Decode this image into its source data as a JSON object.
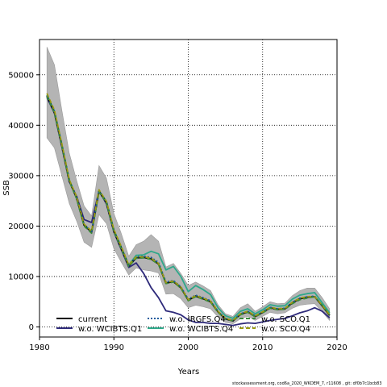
{
  "chart_data": {
    "type": "line",
    "title": "",
    "xlabel": "Years",
    "ylabel": "SSB",
    "xlim": [
      1980,
      2020
    ],
    "ylim": [
      -2000,
      57000
    ],
    "x_ticks": [
      1980,
      1990,
      2000,
      2010,
      2020
    ],
    "y_ticks": [
      0,
      10000,
      20000,
      30000,
      40000,
      50000
    ],
    "grid": "dotted",
    "legend_position": "bottom-left",
    "band": {
      "x": [
        1981,
        1982,
        1983,
        1984,
        1985,
        1986,
        1987,
        1988,
        1989,
        1990,
        1991,
        1992,
        1993,
        1994,
        1995,
        1996,
        1997,
        1998,
        1999,
        2000,
        2001,
        2002,
        2003,
        2004,
        2005,
        2006,
        2007,
        2008,
        2009,
        2010,
        2011,
        2012,
        2013,
        2014,
        2015,
        2016,
        2017,
        2018,
        2019
      ],
      "upper": [
        55500,
        52000,
        43000,
        34500,
        29000,
        24000,
        22000,
        32000,
        29500,
        22500,
        18500,
        14000,
        16300,
        17000,
        18300,
        17000,
        11900,
        12600,
        10600,
        8200,
        8900,
        8100,
        7200,
        4400,
        2600,
        2100,
        3800,
        4600,
        3100,
        4000,
        5000,
        4600,
        4700,
        6200,
        7200,
        7700,
        7700,
        5800,
        3600
      ],
      "lower": [
        37500,
        35500,
        30000,
        24500,
        21000,
        16800,
        15800,
        22300,
        20500,
        15500,
        12800,
        10300,
        11700,
        11300,
        11100,
        10700,
        6500,
        6600,
        5600,
        3800,
        4300,
        4000,
        3600,
        2000,
        900,
        600,
        1600,
        2100,
        1300,
        2100,
        2900,
        2600,
        2800,
        3700,
        4300,
        4500,
        4600,
        3000,
        1300
      ]
    },
    "series": [
      {
        "name": "current",
        "color": "#000000",
        "dash": "solid",
        "values": [
          45800,
          42600,
          36000,
          29000,
          25500,
          20200,
          18800,
          26900,
          24700,
          19000,
          15600,
          12100,
          13700,
          13800,
          13500,
          12500,
          8700,
          9000,
          7800,
          5300,
          6100,
          5600,
          5000,
          3000,
          1600,
          1200,
          2500,
          3000,
          2100,
          2900,
          3800,
          3500,
          3600,
          4800,
          5600,
          5900,
          6000,
          4200,
          2300
        ]
      },
      {
        "name": "w.o. WCIBTS.Q1",
        "color": "#2e2a7a",
        "dash": "solid",
        "values": [
          45500,
          42400,
          35700,
          28800,
          25900,
          21300,
          20700,
          27000,
          24400,
          18800,
          15300,
          11800,
          12700,
          10600,
          7800,
          5800,
          3200,
          2900,
          2400,
          1400,
          900,
          900,
          700,
          700,
          500,
          300,
          600,
          800,
          700,
          1000,
          1300,
          1500,
          1700,
          2200,
          2800,
          3200,
          3800,
          3100,
          1800
        ]
      },
      {
        "name": "w.o. IRGFS.Q4",
        "color": "#1f5c9e",
        "dash": "dotted",
        "values": [
          45900,
          42700,
          36100,
          29100,
          25600,
          20300,
          18900,
          27000,
          24800,
          19100,
          15700,
          12200,
          13900,
          14000,
          13800,
          12800,
          8900,
          9200,
          8000,
          5500,
          6300,
          5800,
          5200,
          3100,
          1700,
          1300,
          2600,
          3100,
          2200,
          3000,
          3900,
          3600,
          3700,
          4900,
          5700,
          6000,
          6100,
          4300,
          2400
        ]
      },
      {
        "name": "w.o. WCIBTS.Q4",
        "color": "#2ea88a",
        "dash": "solid",
        "values": [
          46000,
          42800,
          36200,
          29200,
          25700,
          20300,
          18900,
          27000,
          24900,
          19200,
          15800,
          12300,
          14200,
          14300,
          15000,
          14500,
          11300,
          12000,
          10000,
          7000,
          8200,
          7400,
          6400,
          3800,
          2200,
          1700,
          3100,
          3600,
          2600,
          3400,
          4400,
          4100,
          4200,
          5500,
          6300,
          6600,
          6800,
          4800,
          2800
        ]
      },
      {
        "name": "w.o. SCO.Q1",
        "color": "#3a8a3a",
        "dash": "dashed",
        "values": [
          45700,
          42500,
          35900,
          28900,
          25400,
          20000,
          18600,
          26800,
          24600,
          18900,
          15500,
          12000,
          13600,
          13700,
          13400,
          12400,
          8600,
          8900,
          7700,
          5200,
          6000,
          5500,
          4900,
          2900,
          1600,
          1200,
          2400,
          2900,
          2000,
          2800,
          3700,
          3400,
          3500,
          4600,
          5400,
          5700,
          6000,
          4300,
          2400
        ]
      },
      {
        "name": "w.o. SCO.Q4",
        "color": "#9a9a10",
        "dash": "dashed",
        "values": [
          46300,
          43000,
          36300,
          29200,
          25800,
          20400,
          19000,
          27200,
          24900,
          19300,
          15900,
          12300,
          13900,
          13900,
          13600,
          12600,
          8800,
          9100,
          7900,
          5400,
          6200,
          5700,
          5100,
          3100,
          1700,
          1300,
          2600,
          3100,
          2200,
          3000,
          3900,
          3600,
          3700,
          4900,
          5700,
          6000,
          6000,
          4300,
          2400
        ]
      }
    ]
  },
  "footnote": "stockassessment.org, cod6a_2020_WKDEM_7, r11608 , git: df0b7c1bcb83"
}
